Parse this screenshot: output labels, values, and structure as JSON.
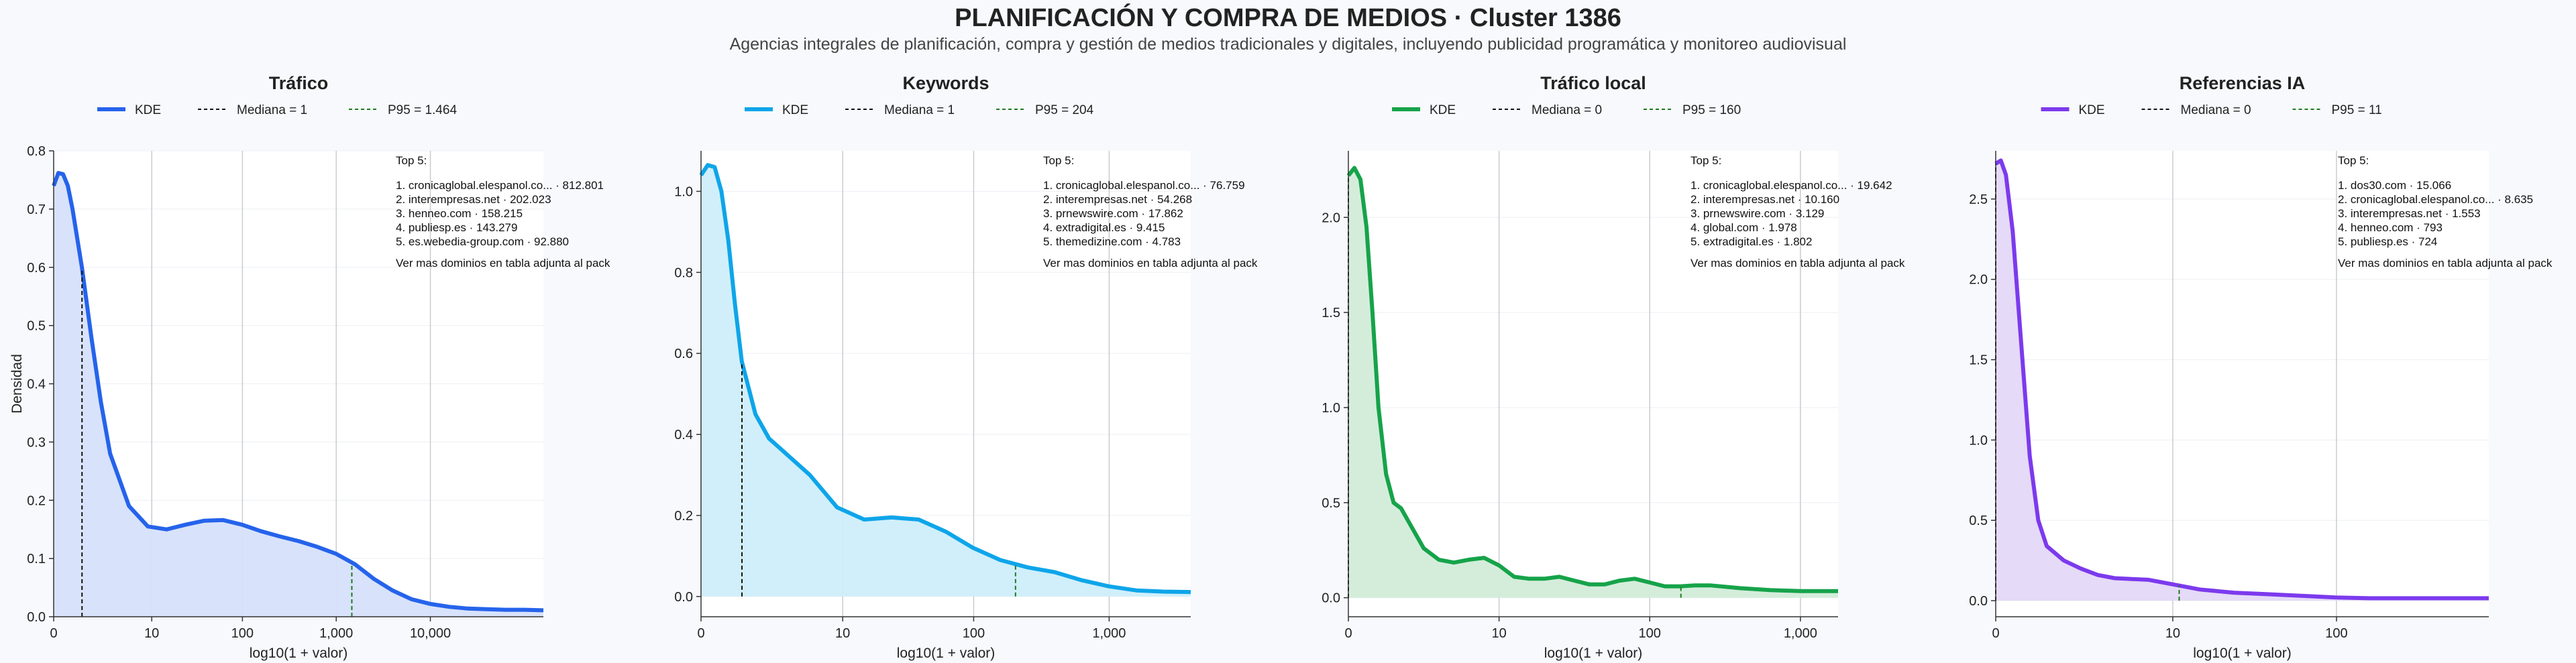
{
  "header": {
    "title": "PLANIFICACIÓN Y COMPRA DE MEDIOS · Cluster 1386",
    "subtitle": "Agencias integrales de planificación, compra y gestión de medios tradicionales y digitales, incluyendo publicidad programática y monitoreo audiovisual"
  },
  "chart_data": [
    {
      "type": "area",
      "title": "Tráfico",
      "xlabel": "log10(1 + valor)",
      "ylabel": "Densidad",
      "xlim": [
        0,
        5.2
      ],
      "ylim": [
        0,
        0.8
      ],
      "xticks": [
        0,
        1.0414,
        2.0043,
        3.0004,
        4.0
      ],
      "xtick_labels": [
        "0",
        "10",
        "100",
        "1,000",
        "10,000"
      ],
      "yticks": [
        0,
        0.1,
        0.2,
        0.3,
        0.4,
        0.5,
        0.6,
        0.7,
        0.8
      ],
      "ytick_labels": [
        "0.0",
        "0.1",
        "0.2",
        "0.3",
        "0.4",
        "0.5",
        "0.6",
        "0.7",
        "0.8"
      ],
      "color": "#2563eb",
      "fill": "#d6e0fb",
      "legend": [
        "KDE",
        "Mediana = 1",
        "P95 = 1.464"
      ],
      "median_x": 0.301,
      "p95_x": 3.166,
      "series": [
        {
          "x": [
            0,
            0.05,
            0.1,
            0.15,
            0.2,
            0.3,
            0.4,
            0.5,
            0.6,
            0.8,
            1.0,
            1.2,
            1.4,
            1.6,
            1.8,
            2.0,
            2.2,
            2.4,
            2.6,
            2.8,
            3.0,
            3.2,
            3.4,
            3.6,
            3.8,
            4.0,
            4.2,
            4.4,
            4.6,
            4.8,
            5.0,
            5.2
          ],
          "y": [
            0.74,
            0.762,
            0.76,
            0.74,
            0.7,
            0.6,
            0.48,
            0.37,
            0.28,
            0.19,
            0.155,
            0.15,
            0.158,
            0.165,
            0.166,
            0.158,
            0.147,
            0.138,
            0.13,
            0.12,
            0.108,
            0.09,
            0.065,
            0.045,
            0.03,
            0.022,
            0.017,
            0.014,
            0.013,
            0.012,
            0.012,
            0.011
          ]
        }
      ],
      "top5_title": "Top 5:",
      "top5": [
        "1. cronicaglobal.elespanol.co... · 812.801",
        "2. interempresas.net · 202.023",
        "3. henneo.com · 158.215",
        "4. publiesp.es · 143.279",
        "5. es.webedia-group.com · 92.880"
      ],
      "top5_note": "Ver mas dominios en tabla adjunta al pack"
    },
    {
      "type": "area",
      "title": "Keywords",
      "xlabel": "log10(1 + valor)",
      "ylabel": "",
      "xlim": [
        0,
        3.6
      ],
      "ylim": [
        -0.05,
        1.1
      ],
      "xticks": [
        0,
        1.0414,
        2.0043,
        3.0004
      ],
      "xtick_labels": [
        "0",
        "10",
        "100",
        "1,000"
      ],
      "yticks": [
        0,
        0.2,
        0.4,
        0.6,
        0.8,
        1.0
      ],
      "ytick_labels": [
        "0.0",
        "0.2",
        "0.4",
        "0.6",
        "0.8",
        "1.0"
      ],
      "color": "#0ea5e9",
      "fill": "#cdeefb",
      "legend": [
        "KDE",
        "Mediana = 1",
        "P95 = 204"
      ],
      "median_x": 0.301,
      "p95_x": 2.312,
      "series": [
        {
          "x": [
            0,
            0.05,
            0.1,
            0.15,
            0.2,
            0.25,
            0.3,
            0.4,
            0.5,
            0.6,
            0.8,
            1.0,
            1.2,
            1.4,
            1.6,
            1.8,
            2.0,
            2.2,
            2.4,
            2.6,
            2.8,
            3.0,
            3.2,
            3.4,
            3.6
          ],
          "y": [
            1.04,
            1.065,
            1.06,
            1.0,
            0.88,
            0.72,
            0.58,
            0.45,
            0.39,
            0.36,
            0.3,
            0.22,
            0.19,
            0.195,
            0.19,
            0.16,
            0.12,
            0.09,
            0.072,
            0.06,
            0.04,
            0.025,
            0.015,
            0.012,
            0.011
          ]
        }
      ],
      "top5_title": "Top 5:",
      "top5": [
        "1. cronicaglobal.elespanol.co... · 76.759",
        "2. interempresas.net · 54.268",
        "3. prnewswire.com · 17.862",
        "4. extradigital.es · 9.415",
        "5. themedizine.com · 4.783"
      ],
      "top5_note": "Ver mas dominios en tabla adjunta al pack"
    },
    {
      "type": "area",
      "title": "Tráfico local",
      "xlabel": "log10(1 + valor)",
      "ylabel": "",
      "xlim": [
        0,
        3.25
      ],
      "ylim": [
        -0.1,
        2.35
      ],
      "xticks": [
        0,
        1.0,
        2.0,
        3.0
      ],
      "xtick_labels": [
        "0",
        "10",
        "100",
        "1,000"
      ],
      "yticks": [
        0,
        0.5,
        1.0,
        1.5,
        2.0
      ],
      "ytick_labels": [
        "0.0",
        "0.5",
        "1.0",
        "1.5",
        "2.0"
      ],
      "color": "#16a34a",
      "fill": "#d2ecd9",
      "legend": [
        "KDE",
        "Mediana = 0",
        "P95 = 160"
      ],
      "median_x": 0.0,
      "p95_x": 2.207,
      "series": [
        {
          "x": [
            0,
            0.04,
            0.08,
            0.12,
            0.16,
            0.2,
            0.25,
            0.3,
            0.35,
            0.4,
            0.5,
            0.6,
            0.7,
            0.8,
            0.9,
            1.0,
            1.1,
            1.2,
            1.3,
            1.4,
            1.5,
            1.6,
            1.7,
            1.8,
            1.9,
            2.0,
            2.1,
            2.2,
            2.3,
            2.4,
            2.6,
            2.8,
            3.0,
            3.25
          ],
          "y": [
            2.22,
            2.26,
            2.2,
            1.95,
            1.5,
            1.0,
            0.65,
            0.5,
            0.47,
            0.4,
            0.26,
            0.2,
            0.185,
            0.2,
            0.21,
            0.17,
            0.11,
            0.1,
            0.1,
            0.11,
            0.09,
            0.07,
            0.07,
            0.09,
            0.1,
            0.08,
            0.06,
            0.06,
            0.065,
            0.065,
            0.05,
            0.04,
            0.035,
            0.035
          ]
        }
      ],
      "top5_title": "Top 5:",
      "top5": [
        "1. cronicaglobal.elespanol.co... · 19.642",
        "2. interempresas.net · 10.160",
        "3. prnewswire.com · 3.129",
        "4. global.com · 1.978",
        "5. extradigital.es · 1.802"
      ],
      "top5_note": "Ver mas dominios en tabla adjunta al pack"
    },
    {
      "type": "area",
      "title": "Referencias IA",
      "xlabel": "log10(1 + valor)",
      "ylabel": "",
      "xlim": [
        0,
        2.9
      ],
      "ylim": [
        -0.1,
        2.8
      ],
      "xticks": [
        0,
        1.0414,
        2.0043
      ],
      "xtick_labels": [
        "0",
        "10",
        "100"
      ],
      "yticks": [
        0,
        0.5,
        1.0,
        1.5,
        2.0,
        2.5
      ],
      "ytick_labels": [
        "0.0",
        "0.5",
        "1.0",
        "1.5",
        "2.0",
        "2.5"
      ],
      "color": "#7c3aed",
      "fill": "#e4d8f7",
      "legend": [
        "KDE",
        "Mediana = 0",
        "P95 = 11"
      ],
      "median_x": 0.0,
      "p95_x": 1.079,
      "series": [
        {
          "x": [
            0,
            0.03,
            0.06,
            0.1,
            0.15,
            0.2,
            0.25,
            0.3,
            0.4,
            0.5,
            0.6,
            0.7,
            0.8,
            0.9,
            1.0,
            1.2,
            1.4,
            1.6,
            1.8,
            2.0,
            2.2,
            2.4,
            2.6,
            2.8,
            2.9
          ],
          "y": [
            2.72,
            2.74,
            2.65,
            2.3,
            1.6,
            0.9,
            0.5,
            0.34,
            0.25,
            0.2,
            0.16,
            0.14,
            0.135,
            0.13,
            0.11,
            0.07,
            0.05,
            0.04,
            0.03,
            0.02,
            0.015,
            0.015,
            0.015,
            0.015,
            0.015
          ]
        }
      ],
      "top5_title": "Top 5:",
      "top5": [
        "1. dos30.com · 15.066",
        "2. cronicaglobal.elespanol.co... · 8.635",
        "3. interempresas.net · 1.553",
        "4. henneo.com · 793",
        "5. publiesp.es · 724"
      ],
      "top5_note": "Ver mas dominios en tabla adjunta al pack"
    }
  ]
}
